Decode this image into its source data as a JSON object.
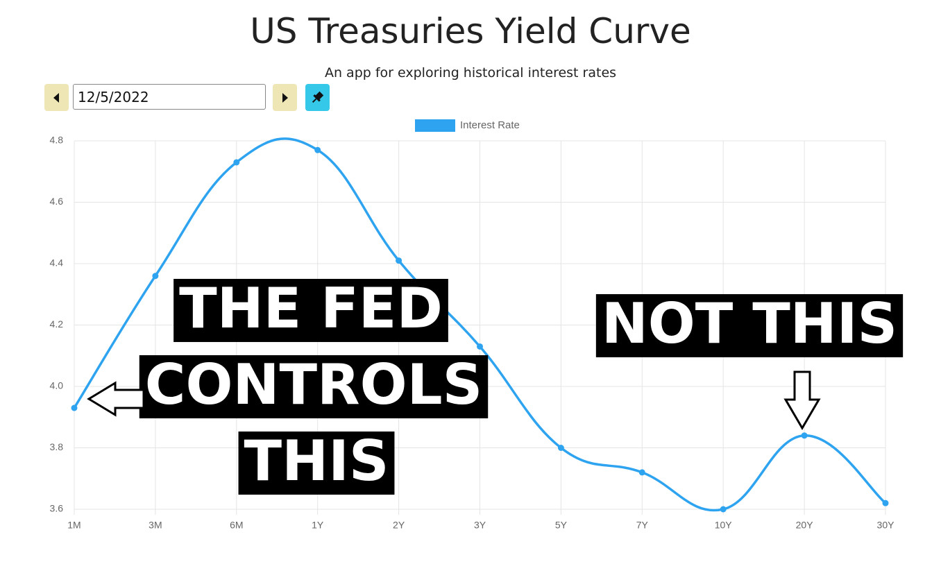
{
  "controls": {
    "date": "12/5/2022"
  },
  "chart_data": {
    "type": "line",
    "title": "US Treasuries Yield Curve",
    "subtitle": "An app for exploring historical interest rates",
    "categories": [
      "1M",
      "3M",
      "6M",
      "1Y",
      "2Y",
      "3Y",
      "5Y",
      "7Y",
      "10Y",
      "20Y",
      "30Y"
    ],
    "series": [
      {
        "name": "Interest Rate",
        "color": "#2ea3f0",
        "values": [
          3.93,
          4.36,
          4.73,
          4.77,
          4.41,
          4.13,
          3.8,
          3.72,
          3.6,
          3.84,
          3.62
        ]
      }
    ],
    "ylim": [
      3.6,
      4.8
    ],
    "yticks": [
      3.6,
      3.8,
      {
        "value": 4,
        "label": "4.0"
      },
      4.2,
      4.4,
      4.6,
      4.8
    ],
    "grid": true,
    "legend": "top",
    "annotations": [
      [
        "THE FED",
        "CONTROLS",
        "THIS"
      ],
      [
        "NOT THIS"
      ]
    ]
  }
}
